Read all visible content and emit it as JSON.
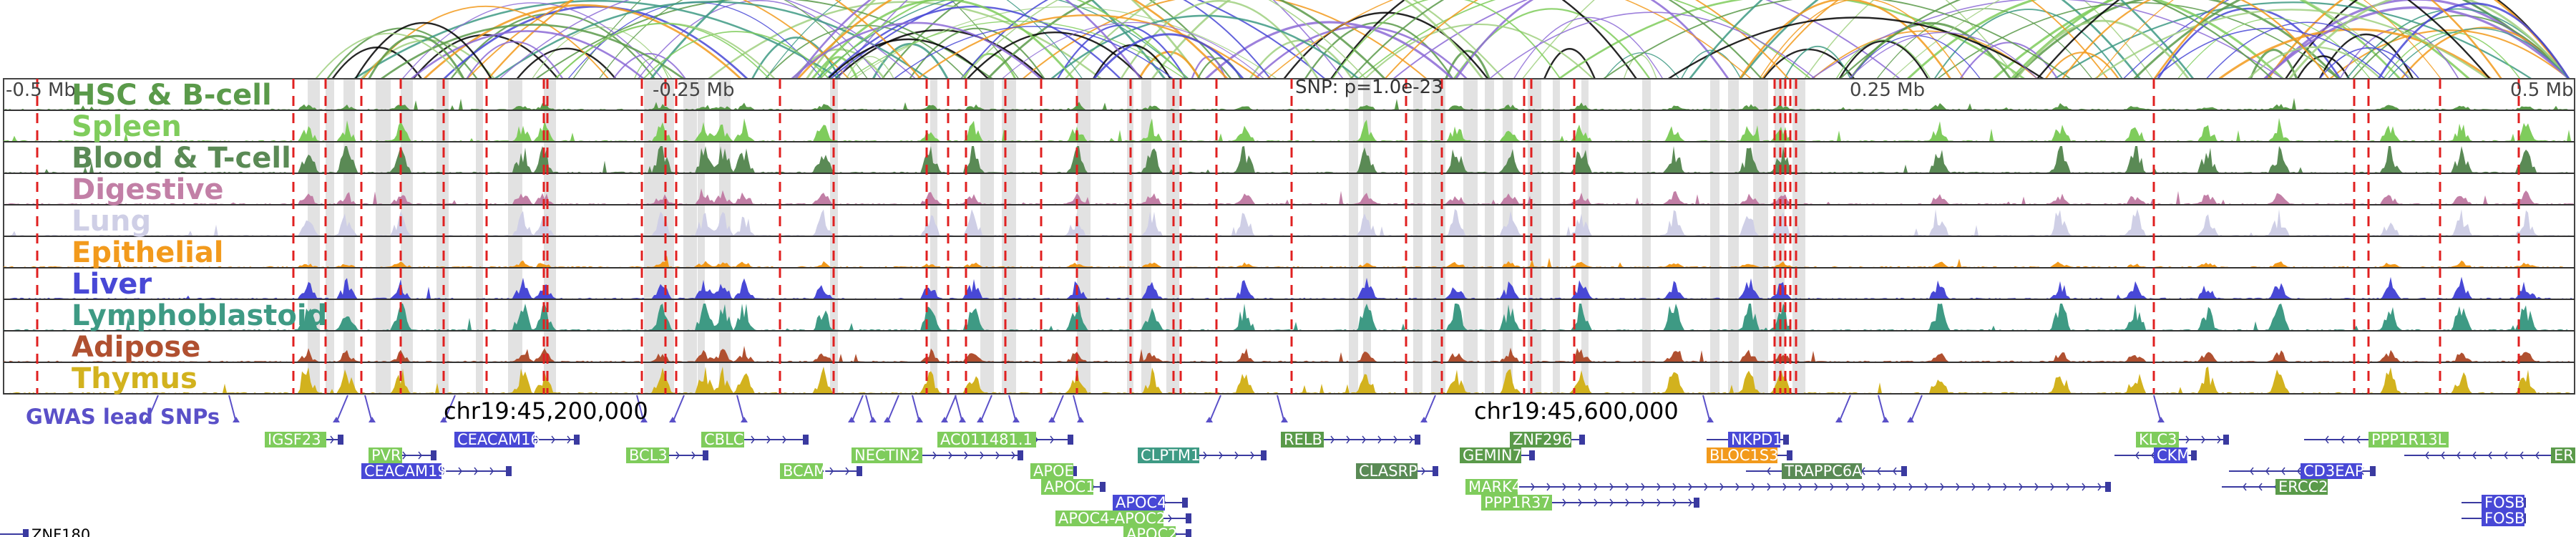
{
  "axis": {
    "ticks": [
      {
        "label": "-0.5 Mb",
        "pos": 0.0
      },
      {
        "label": "-0.25 Mb",
        "pos": 0.25
      },
      {
        "label": "0.25 Mb",
        "pos": 0.75
      },
      {
        "label": "0.5 Mb",
        "pos": 1.0
      }
    ],
    "snp_label": "SNP: p=1.0e-23",
    "coords": [
      {
        "label": "chr19:45,200,000",
        "pos": 0.2
      },
      {
        "label": "chr19:45,600,000",
        "pos": 0.6
      }
    ]
  },
  "tracks": [
    {
      "name": "HSC & B-cell",
      "color": "#5a9a4a"
    },
    {
      "name": "Spleen",
      "color": "#7fcc5c"
    },
    {
      "name": "Blood & T-cell",
      "color": "#5a8a55"
    },
    {
      "name": "Digestive",
      "color": "#c27fa6"
    },
    {
      "name": "Lung",
      "color": "#cfcfe6"
    },
    {
      "name": "Epithelial",
      "color": "#f29a1c"
    },
    {
      "name": "Liver",
      "color": "#4848d6"
    },
    {
      "name": "Lymphoblastoid",
      "color": "#3e9a84"
    },
    {
      "name": "Adipose",
      "color": "#b05030"
    },
    {
      "name": "Thymus",
      "color": "#d2b21e"
    }
  ],
  "gwas_label": "GWAS lead SNPs",
  "gwas_color": "#5a50c8",
  "genes": [
    {
      "name": "IGSF23",
      "color": "#7fcc5c"
    },
    {
      "name": "PVR",
      "color": "#7fcc5c"
    },
    {
      "name": "CEACAM19",
      "color": "#4848d6"
    },
    {
      "name": "CEACAM16",
      "color": "#4848d6"
    },
    {
      "name": "BCL3",
      "color": "#7fcc5c"
    },
    {
      "name": "CBLC",
      "color": "#7fcc5c"
    },
    {
      "name": "BCAM",
      "color": "#7fcc5c"
    },
    {
      "name": "NECTIN2",
      "color": "#7fcc5c"
    },
    {
      "name": "AC011481.1",
      "color": "#7fcc5c"
    },
    {
      "name": "APOE",
      "color": "#7fcc5c"
    },
    {
      "name": "APOC1",
      "color": "#7fcc5c"
    },
    {
      "name": "APOC4",
      "color": "#4848d6"
    },
    {
      "name": "APOC4-APOC2",
      "color": "#7fcc5c"
    },
    {
      "name": "APOC2",
      "color": "#7fcc5c"
    },
    {
      "name": "CLPTM1",
      "color": "#3e9a84"
    },
    {
      "name": "RELB",
      "color": "#5a9a4a"
    },
    {
      "name": "CLASRP",
      "color": "#5a8a55"
    },
    {
      "name": "GEMIN7",
      "color": "#5a9a4a"
    },
    {
      "name": "ZNF296",
      "color": "#5a9a4a"
    },
    {
      "name": "MARK4",
      "color": "#7fcc5c"
    },
    {
      "name": "PPP1R37",
      "color": "#7fcc5c"
    },
    {
      "name": "NKPD1",
      "color": "#4848d6"
    },
    {
      "name": "BLOC1S3",
      "color": "#f29a1c"
    },
    {
      "name": "TRAPPC6A",
      "color": "#5a8a55"
    },
    {
      "name": "KLC3",
      "color": "#7fcc5c"
    },
    {
      "name": "CKM",
      "color": "#4848d6"
    },
    {
      "name": "PPP1R13L",
      "color": "#7fcc5c"
    },
    {
      "name": "CD3EAP",
      "color": "#4848d6"
    },
    {
      "name": "ERCC2",
      "color": "#5a9a4a"
    },
    {
      "name": "ER",
      "color": "#5a9a4a"
    },
    {
      "name": "FOSB",
      "color": "#4848d6"
    },
    {
      "name": "FOSB",
      "color": "#4848d6"
    },
    {
      "name": "ZNF180",
      "color": ""
    }
  ]
}
